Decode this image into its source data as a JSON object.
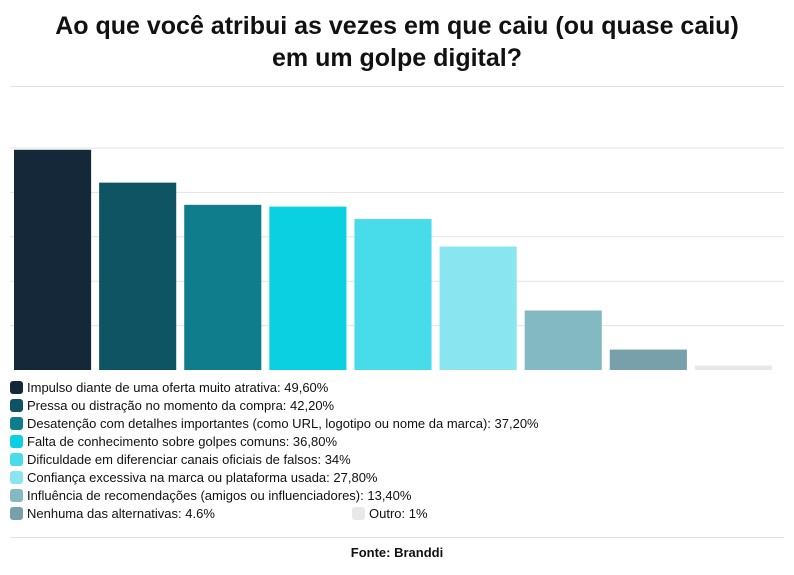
{
  "title_line1": "Ao que você atribui as vezes em que caiu (ou quase caiu)",
  "title_line2": "em um golpe digital?",
  "source": "Fonte: Branddi",
  "chart_data": {
    "type": "bar",
    "title": "Ao que você atribui as vezes em que caiu (ou quase caiu) em um golpe digital?",
    "categories": [
      "Impulso diante de uma oferta muito atrativa",
      "Pressa ou distração no momento da compra",
      "Desatenção com detalhes importantes (como URL, logotipo ou nome da marca)",
      "Falta de conhecimento sobre golpes comuns",
      "Dificuldade em diferenciar canais oficiais de falsos",
      "Confiança excessiva na marca ou plataforma usada",
      "Influência de recomendações (amigos ou influenciadores)",
      "Nenhuma das alternativas",
      "Outro"
    ],
    "values": [
      49.6,
      42.2,
      37.2,
      36.8,
      34,
      27.8,
      13.4,
      4.6,
      1
    ],
    "colors": [
      "#14283a",
      "#0f5462",
      "#107d8c",
      "#0bd0e2",
      "#48dbea",
      "#89e6f0",
      "#82b9c3",
      "#77a0aa",
      "#e8e8e8"
    ],
    "ylim": [
      0,
      50
    ],
    "grid": true,
    "legend_position": "bottom"
  },
  "legend": [
    {
      "text": "Impulso diante de uma oferta muito atrativa: 49,60%"
    },
    {
      "text": "Pressa ou distração no momento da compra: 42,20%"
    },
    {
      "text": "Desatenção com detalhes importantes (como URL, logotipo ou nome da marca): 37,20%"
    },
    {
      "text": "Falta de conhecimento sobre golpes comuns: 36,80%"
    },
    {
      "text": "Dificuldade em diferenciar canais oficiais de falsos: 34%"
    },
    {
      "text": "Confiança excessiva na marca ou plataforma usada: 27,80%"
    },
    {
      "text": "Influência de recomendações (amigos ou influenciadores): 13,40%"
    },
    {
      "text": "Nenhuma das alternativas: 4.6%"
    },
    {
      "text": "Outro: 1%"
    }
  ]
}
